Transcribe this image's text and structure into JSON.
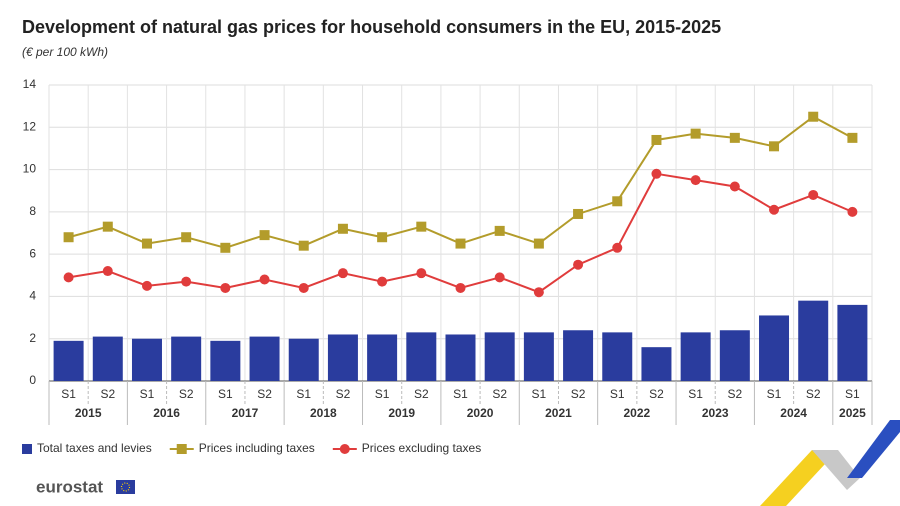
{
  "chart_data": {
    "type": "bar-line",
    "title": "Development of natural gas prices for household consumers in the EU, 2015-2025",
    "subtitle": "(€ per 100 kWh)",
    "categories": [
      "S1",
      "S2",
      "S1",
      "S2",
      "S1",
      "S2",
      "S1",
      "S2",
      "S1",
      "S2",
      "S1",
      "S2",
      "S1",
      "S2",
      "S1",
      "S2",
      "S1",
      "S2",
      "S1",
      "S2",
      "S1"
    ],
    "groups": [
      {
        "label": "2015",
        "count": 2
      },
      {
        "label": "2016",
        "count": 2
      },
      {
        "label": "2017",
        "count": 2
      },
      {
        "label": "2018",
        "count": 2
      },
      {
        "label": "2019",
        "count": 2
      },
      {
        "label": "2020",
        "count": 2
      },
      {
        "label": "2021",
        "count": 2
      },
      {
        "label": "2022",
        "count": 2
      },
      {
        "label": "2023",
        "count": 2
      },
      {
        "label": "2024",
        "count": 2
      },
      {
        "label": "2025",
        "count": 1
      }
    ],
    "series": [
      {
        "name": "Total taxes and levies",
        "type": "bar",
        "color": "#2a3c9e",
        "values": [
          1.9,
          2.1,
          2.0,
          2.1,
          1.9,
          2.1,
          2.0,
          2.2,
          2.2,
          2.3,
          2.2,
          2.3,
          2.3,
          2.4,
          2.3,
          1.6,
          2.3,
          2.4,
          3.1,
          3.8,
          3.6
        ]
      },
      {
        "name": "Prices including taxes",
        "type": "line",
        "marker": "square",
        "color": "#b39c2b",
        "values": [
          6.8,
          7.3,
          6.5,
          6.8,
          6.3,
          6.9,
          6.4,
          7.2,
          6.8,
          7.3,
          6.5,
          7.1,
          6.5,
          7.9,
          8.5,
          11.4,
          11.7,
          11.5,
          11.1,
          12.5,
          11.5
        ]
      },
      {
        "name": "Prices excluding taxes",
        "type": "line",
        "marker": "circle",
        "color": "#e03c3c",
        "values": [
          4.9,
          5.2,
          4.5,
          4.7,
          4.4,
          4.8,
          4.4,
          5.1,
          4.7,
          5.1,
          4.4,
          4.9,
          4.2,
          5.5,
          6.3,
          9.8,
          9.5,
          9.2,
          8.1,
          8.8,
          8.0
        ]
      }
    ],
    "ylim": [
      0,
      14
    ],
    "yticks": [
      0,
      2,
      4,
      6,
      8,
      10,
      12,
      14
    ],
    "grid": true,
    "legend": "bottom-left",
    "source_logo": "eurostat"
  }
}
